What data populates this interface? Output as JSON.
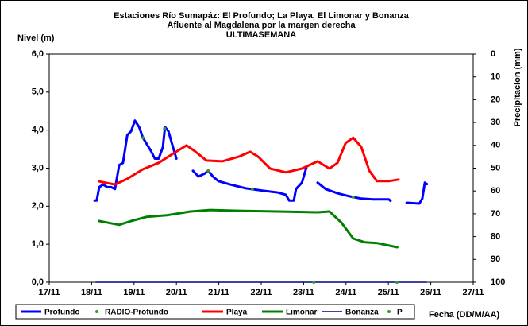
{
  "chart_data": {
    "type": "line",
    "title": [
      "Estaciones Río Sumapáz: El Profundo; La Playa, El Limonar y Bonanza",
      "Afluente al Magdalena por la margen derecha",
      "ULTIMASEMANA"
    ],
    "y_label": "Nivel (m)",
    "y2_label": "Precipitacion (mm)",
    "x_label": "Fecha (DD/M/AA)",
    "xlim": [
      17,
      27
    ],
    "xticks": [
      {
        "value": 17,
        "label": "17/11"
      },
      {
        "value": 18,
        "label": "18/11"
      },
      {
        "value": 19,
        "label": "19/11"
      },
      {
        "value": 20,
        "label": "20/11"
      },
      {
        "value": 21,
        "label": "21/11"
      },
      {
        "value": 22,
        "label": "22/11"
      },
      {
        "value": 23,
        "label": "23/11"
      },
      {
        "value": 24,
        "label": "24/11"
      },
      {
        "value": 25,
        "label": "25/11"
      },
      {
        "value": 26,
        "label": "26/11"
      },
      {
        "value": 27,
        "label": "27/11"
      }
    ],
    "ylim": [
      0,
      6
    ],
    "yticks": [
      {
        "value": 0,
        "label": "0,0"
      },
      {
        "value": 1,
        "label": "1,0"
      },
      {
        "value": 2,
        "label": "2,0"
      },
      {
        "value": 3,
        "label": "3,0"
      },
      {
        "value": 4,
        "label": "4,0"
      },
      {
        "value": 5,
        "label": "5,0"
      },
      {
        "value": 6,
        "label": "6,0"
      }
    ],
    "y2lim": [
      100,
      0
    ],
    "y2ticks": [
      0,
      10,
      20,
      30,
      40,
      50,
      60,
      70,
      80,
      90,
      100
    ],
    "grid": false,
    "legend": "bottom",
    "series": [
      {
        "name": "Profundo",
        "color": "#0000ff",
        "line_width": 3,
        "x": [
          18.07,
          18.12,
          18.18,
          18.27,
          18.37,
          18.46,
          18.55,
          18.65,
          18.74,
          18.84,
          18.93,
          19.02,
          19.12,
          19.21,
          19.4,
          19.49,
          19.58,
          19.68,
          19.73,
          19.81,
          19.92,
          20.0,
          20.2,
          20.39,
          20.52,
          20.67,
          20.75,
          20.86,
          20.99,
          21.27,
          21.64,
          22.02,
          22.39,
          22.58,
          22.66,
          22.77,
          22.82,
          22.96,
          23.07,
          23.2,
          23.33,
          23.52,
          23.8,
          24.08,
          24.36,
          24.64,
          25.01,
          25.05,
          25.2,
          25.43,
          25.73,
          25.8,
          25.86,
          25.91
        ],
        "values": [
          2.15,
          2.15,
          2.5,
          2.57,
          2.5,
          2.5,
          2.45,
          3.08,
          3.14,
          3.87,
          3.97,
          4.25,
          4.08,
          3.8,
          3.45,
          3.25,
          3.25,
          3.55,
          4.08,
          3.97,
          3.55,
          3.25,
          null,
          2.93,
          2.78,
          2.86,
          2.93,
          2.78,
          2.66,
          2.57,
          2.47,
          2.41,
          2.36,
          2.3,
          2.15,
          2.15,
          2.45,
          2.62,
          3.03,
          null,
          2.62,
          2.45,
          2.34,
          2.26,
          2.2,
          2.18,
          2.18,
          2.14,
          null,
          2.09,
          2.07,
          2.2,
          2.62,
          2.58
        ]
      },
      {
        "name": "RADIO-Profundo",
        "color": "#339933",
        "marker": "dot",
        "x": [
          19.21,
          19.72,
          20.75,
          21.79,
          24.17
        ],
        "values": [
          3.8,
          4.04,
          2.93,
          2.45,
          2.24
        ]
      },
      {
        "name": "Playa",
        "color": "#ff0000",
        "line_width": 3,
        "x": [
          18.18,
          18.55,
          18.84,
          19.21,
          19.58,
          19.96,
          20.24,
          20.43,
          20.71,
          21.08,
          21.46,
          21.74,
          21.93,
          22.21,
          22.58,
          22.96,
          23.33,
          23.61,
          23.8,
          23.99,
          24.17,
          24.36,
          24.55,
          24.73,
          25.01,
          25.24
        ],
        "values": [
          2.65,
          2.57,
          2.72,
          2.97,
          3.14,
          3.41,
          3.6,
          3.45,
          3.2,
          3.18,
          3.3,
          3.43,
          3.3,
          2.99,
          2.89,
          2.99,
          3.18,
          2.99,
          3.14,
          3.66,
          3.8,
          3.56,
          2.93,
          2.66,
          2.66,
          2.7
        ]
      },
      {
        "name": "Limonar",
        "color": "#008000",
        "line_width": 3,
        "x": [
          18.18,
          18.65,
          18.93,
          19.3,
          19.77,
          20.33,
          20.8,
          21.46,
          22.39,
          23.33,
          23.61,
          23.89,
          24.17,
          24.45,
          24.73,
          25.21
        ],
        "values": [
          1.61,
          1.51,
          1.61,
          1.72,
          1.76,
          1.86,
          1.9,
          1.88,
          1.86,
          1.84,
          1.86,
          1.57,
          1.15,
          1.05,
          1.03,
          0.92
        ]
      },
      {
        "name": "Bonanza",
        "color": "#000080",
        "line_width": 1.5,
        "x": [
          18.1,
          25.9
        ],
        "values": [
          0,
          0
        ]
      },
      {
        "name": "P",
        "color": "#339933",
        "marker": "dot",
        "x": [
          23.24,
          25.2
        ],
        "values": [
          0,
          0
        ]
      }
    ]
  }
}
